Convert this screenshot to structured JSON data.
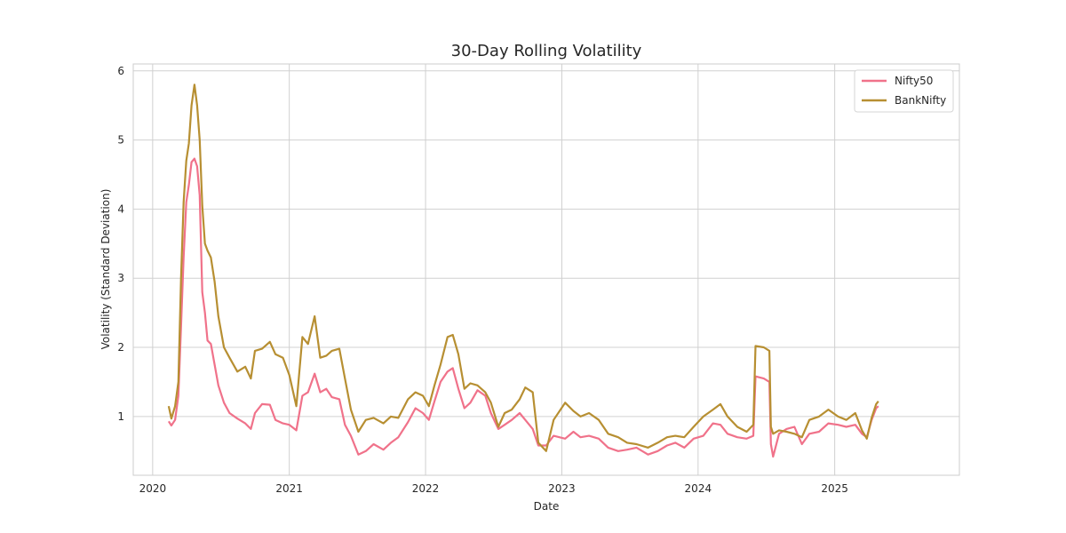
{
  "chart_data": {
    "type": "line",
    "title": "30-Day Rolling Volatility",
    "xlabel": "Date",
    "ylabel": "Volatility (Standard Deviation)",
    "x_ticks": [
      "2020",
      "2021",
      "2022",
      "2023",
      "2024",
      "2025"
    ],
    "y_ticks": [
      "1",
      "2",
      "3",
      "4",
      "5",
      "6"
    ],
    "xlim": [
      "2019-11-10",
      "2025-12-01"
    ],
    "ylim": [
      0.15,
      6.1
    ],
    "grid": true,
    "legend_position": "top-right",
    "series": [
      {
        "name": "Nifty50",
        "color": "#f0728a",
        "points": [
          [
            "2020-02-13",
            0.93
          ],
          [
            "2020-02-20",
            0.87
          ],
          [
            "2020-03-01",
            0.95
          ],
          [
            "2020-03-10",
            1.3
          ],
          [
            "2020-03-17",
            2.3
          ],
          [
            "2020-03-24",
            3.3
          ],
          [
            "2020-03-31",
            4.1
          ],
          [
            "2020-04-07",
            4.35
          ],
          [
            "2020-04-14",
            4.68
          ],
          [
            "2020-04-22",
            4.73
          ],
          [
            "2020-04-29",
            4.62
          ],
          [
            "2020-05-06",
            4.2
          ],
          [
            "2020-05-13",
            2.8
          ],
          [
            "2020-05-20",
            2.5
          ],
          [
            "2020-05-27",
            2.1
          ],
          [
            "2020-06-05",
            2.05
          ],
          [
            "2020-06-15",
            1.75
          ],
          [
            "2020-06-25",
            1.45
          ],
          [
            "2020-07-10",
            1.2
          ],
          [
            "2020-07-25",
            1.05
          ],
          [
            "2020-08-15",
            0.97
          ],
          [
            "2020-09-05",
            0.9
          ],
          [
            "2020-09-20",
            0.82
          ],
          [
            "2020-10-01",
            1.05
          ],
          [
            "2020-10-20",
            1.18
          ],
          [
            "2020-11-10",
            1.17
          ],
          [
            "2020-11-25",
            0.95
          ],
          [
            "2020-12-15",
            0.9
          ],
          [
            "2021-01-01",
            0.88
          ],
          [
            "2021-01-20",
            0.8
          ],
          [
            "2021-02-05",
            1.3
          ],
          [
            "2021-02-20",
            1.35
          ],
          [
            "2021-03-10",
            1.62
          ],
          [
            "2021-03-25",
            1.35
          ],
          [
            "2021-04-10",
            1.4
          ],
          [
            "2021-04-25",
            1.28
          ],
          [
            "2021-05-15",
            1.25
          ],
          [
            "2021-05-30",
            0.88
          ],
          [
            "2021-06-15",
            0.72
          ],
          [
            "2021-07-05",
            0.45
          ],
          [
            "2021-07-25",
            0.5
          ],
          [
            "2021-08-15",
            0.6
          ],
          [
            "2021-09-10",
            0.52
          ],
          [
            "2021-09-30",
            0.62
          ],
          [
            "2021-10-20",
            0.7
          ],
          [
            "2021-11-15",
            0.92
          ],
          [
            "2021-12-05",
            1.12
          ],
          [
            "2021-12-25",
            1.05
          ],
          [
            "2022-01-10",
            0.95
          ],
          [
            "2022-01-25",
            1.22
          ],
          [
            "2022-02-10",
            1.5
          ],
          [
            "2022-03-01",
            1.65
          ],
          [
            "2022-03-15",
            1.7
          ],
          [
            "2022-03-30",
            1.4
          ],
          [
            "2022-04-15",
            1.12
          ],
          [
            "2022-05-01",
            1.2
          ],
          [
            "2022-05-20",
            1.38
          ],
          [
            "2022-06-10",
            1.3
          ],
          [
            "2022-06-25",
            1.05
          ],
          [
            "2022-07-15",
            0.82
          ],
          [
            "2022-08-01",
            0.88
          ],
          [
            "2022-08-20",
            0.95
          ],
          [
            "2022-09-10",
            1.05
          ],
          [
            "2022-09-25",
            0.95
          ],
          [
            "2022-10-15",
            0.82
          ],
          [
            "2022-10-30",
            0.58
          ],
          [
            "2022-11-20",
            0.58
          ],
          [
            "2022-12-10",
            0.72
          ],
          [
            "2023-01-10",
            0.68
          ],
          [
            "2023-02-01",
            0.78
          ],
          [
            "2023-02-20",
            0.7
          ],
          [
            "2023-03-15",
            0.72
          ],
          [
            "2023-04-10",
            0.68
          ],
          [
            "2023-05-05",
            0.55
          ],
          [
            "2023-06-01",
            0.5
          ],
          [
            "2023-06-25",
            0.52
          ],
          [
            "2023-07-20",
            0.55
          ],
          [
            "2023-08-20",
            0.45
          ],
          [
            "2023-09-15",
            0.5
          ],
          [
            "2023-10-10",
            0.58
          ],
          [
            "2023-11-01",
            0.62
          ],
          [
            "2023-11-25",
            0.55
          ],
          [
            "2023-12-20",
            0.68
          ],
          [
            "2024-01-15",
            0.72
          ],
          [
            "2024-02-10",
            0.9
          ],
          [
            "2024-03-01",
            0.88
          ],
          [
            "2024-03-20",
            0.75
          ],
          [
            "2024-04-15",
            0.7
          ],
          [
            "2024-05-10",
            0.68
          ],
          [
            "2024-05-28",
            0.72
          ],
          [
            "2024-06-03",
            1.58
          ],
          [
            "2024-06-25",
            1.55
          ],
          [
            "2024-07-10",
            1.5
          ],
          [
            "2024-07-14",
            0.6
          ],
          [
            "2024-07-20",
            0.42
          ],
          [
            "2024-08-05",
            0.75
          ],
          [
            "2024-08-25",
            0.82
          ],
          [
            "2024-09-15",
            0.85
          ],
          [
            "2024-10-05",
            0.6
          ],
          [
            "2024-10-25",
            0.75
          ],
          [
            "2024-11-20",
            0.78
          ],
          [
            "2024-12-15",
            0.9
          ],
          [
            "2025-01-10",
            0.88
          ],
          [
            "2025-02-01",
            0.85
          ],
          [
            "2025-02-25",
            0.88
          ],
          [
            "2025-03-15",
            0.75
          ],
          [
            "2025-03-28",
            0.7
          ],
          [
            "2025-04-10",
            0.95
          ],
          [
            "2025-04-22",
            1.12
          ],
          [
            "2025-04-28",
            1.15
          ]
        ]
      },
      {
        "name": "BankNifty",
        "color": "#b78f32",
        "points": [
          [
            "2020-02-13",
            1.15
          ],
          [
            "2020-02-20",
            0.97
          ],
          [
            "2020-03-01",
            1.15
          ],
          [
            "2020-03-10",
            1.5
          ],
          [
            "2020-03-17",
            3.0
          ],
          [
            "2020-03-24",
            4.1
          ],
          [
            "2020-03-31",
            4.7
          ],
          [
            "2020-04-07",
            4.95
          ],
          [
            "2020-04-14",
            5.5
          ],
          [
            "2020-04-22",
            5.8
          ],
          [
            "2020-04-29",
            5.5
          ],
          [
            "2020-05-06",
            5.0
          ],
          [
            "2020-05-13",
            4.05
          ],
          [
            "2020-05-20",
            3.5
          ],
          [
            "2020-05-27",
            3.4
          ],
          [
            "2020-06-05",
            3.3
          ],
          [
            "2020-06-15",
            2.95
          ],
          [
            "2020-06-25",
            2.45
          ],
          [
            "2020-07-10",
            2.0
          ],
          [
            "2020-07-25",
            1.85
          ],
          [
            "2020-08-15",
            1.65
          ],
          [
            "2020-09-05",
            1.72
          ],
          [
            "2020-09-20",
            1.55
          ],
          [
            "2020-10-01",
            1.95
          ],
          [
            "2020-10-20",
            1.98
          ],
          [
            "2020-11-10",
            2.08
          ],
          [
            "2020-11-25",
            1.9
          ],
          [
            "2020-12-15",
            1.85
          ],
          [
            "2021-01-01",
            1.6
          ],
          [
            "2021-01-20",
            1.15
          ],
          [
            "2021-02-05",
            2.15
          ],
          [
            "2021-02-20",
            2.05
          ],
          [
            "2021-03-10",
            2.45
          ],
          [
            "2021-03-25",
            1.85
          ],
          [
            "2021-04-10",
            1.88
          ],
          [
            "2021-04-25",
            1.95
          ],
          [
            "2021-05-15",
            1.98
          ],
          [
            "2021-05-30",
            1.55
          ],
          [
            "2021-06-15",
            1.1
          ],
          [
            "2021-07-05",
            0.78
          ],
          [
            "2021-07-25",
            0.95
          ],
          [
            "2021-08-15",
            0.98
          ],
          [
            "2021-09-10",
            0.9
          ],
          [
            "2021-09-30",
            1.0
          ],
          [
            "2021-10-20",
            0.98
          ],
          [
            "2021-11-15",
            1.25
          ],
          [
            "2021-12-05",
            1.35
          ],
          [
            "2021-12-25",
            1.3
          ],
          [
            "2022-01-10",
            1.15
          ],
          [
            "2022-01-25",
            1.45
          ],
          [
            "2022-02-10",
            1.75
          ],
          [
            "2022-03-01",
            2.15
          ],
          [
            "2022-03-15",
            2.18
          ],
          [
            "2022-03-30",
            1.9
          ],
          [
            "2022-04-15",
            1.4
          ],
          [
            "2022-05-01",
            1.48
          ],
          [
            "2022-05-20",
            1.45
          ],
          [
            "2022-06-10",
            1.35
          ],
          [
            "2022-06-25",
            1.2
          ],
          [
            "2022-07-15",
            0.85
          ],
          [
            "2022-08-01",
            1.05
          ],
          [
            "2022-08-20",
            1.1
          ],
          [
            "2022-09-10",
            1.25
          ],
          [
            "2022-09-25",
            1.42
          ],
          [
            "2022-10-15",
            1.35
          ],
          [
            "2022-10-30",
            0.62
          ],
          [
            "2022-11-20",
            0.5
          ],
          [
            "2022-12-10",
            0.95
          ],
          [
            "2023-01-10",
            1.2
          ],
          [
            "2023-02-01",
            1.08
          ],
          [
            "2023-02-20",
            1.0
          ],
          [
            "2023-03-15",
            1.05
          ],
          [
            "2023-04-10",
            0.95
          ],
          [
            "2023-05-05",
            0.75
          ],
          [
            "2023-06-01",
            0.7
          ],
          [
            "2023-06-25",
            0.62
          ],
          [
            "2023-07-20",
            0.6
          ],
          [
            "2023-08-20",
            0.55
          ],
          [
            "2023-09-15",
            0.62
          ],
          [
            "2023-10-10",
            0.7
          ],
          [
            "2023-11-01",
            0.72
          ],
          [
            "2023-11-25",
            0.7
          ],
          [
            "2023-12-20",
            0.85
          ],
          [
            "2024-01-15",
            1.0
          ],
          [
            "2024-02-10",
            1.1
          ],
          [
            "2024-03-01",
            1.18
          ],
          [
            "2024-03-20",
            1.0
          ],
          [
            "2024-04-15",
            0.85
          ],
          [
            "2024-05-10",
            0.78
          ],
          [
            "2024-05-28",
            0.88
          ],
          [
            "2024-06-03",
            2.02
          ],
          [
            "2024-06-25",
            2.0
          ],
          [
            "2024-07-10",
            1.95
          ],
          [
            "2024-07-14",
            0.85
          ],
          [
            "2024-07-20",
            0.75
          ],
          [
            "2024-08-05",
            0.8
          ],
          [
            "2024-08-25",
            0.78
          ],
          [
            "2024-09-15",
            0.75
          ],
          [
            "2024-10-05",
            0.7
          ],
          [
            "2024-10-25",
            0.95
          ],
          [
            "2024-11-20",
            1.0
          ],
          [
            "2024-12-15",
            1.1
          ],
          [
            "2025-01-10",
            1.0
          ],
          [
            "2025-02-01",
            0.95
          ],
          [
            "2025-02-25",
            1.05
          ],
          [
            "2025-03-15",
            0.8
          ],
          [
            "2025-03-28",
            0.68
          ],
          [
            "2025-04-10",
            0.98
          ],
          [
            "2025-04-22",
            1.18
          ],
          [
            "2025-04-28",
            1.22
          ]
        ]
      }
    ]
  }
}
